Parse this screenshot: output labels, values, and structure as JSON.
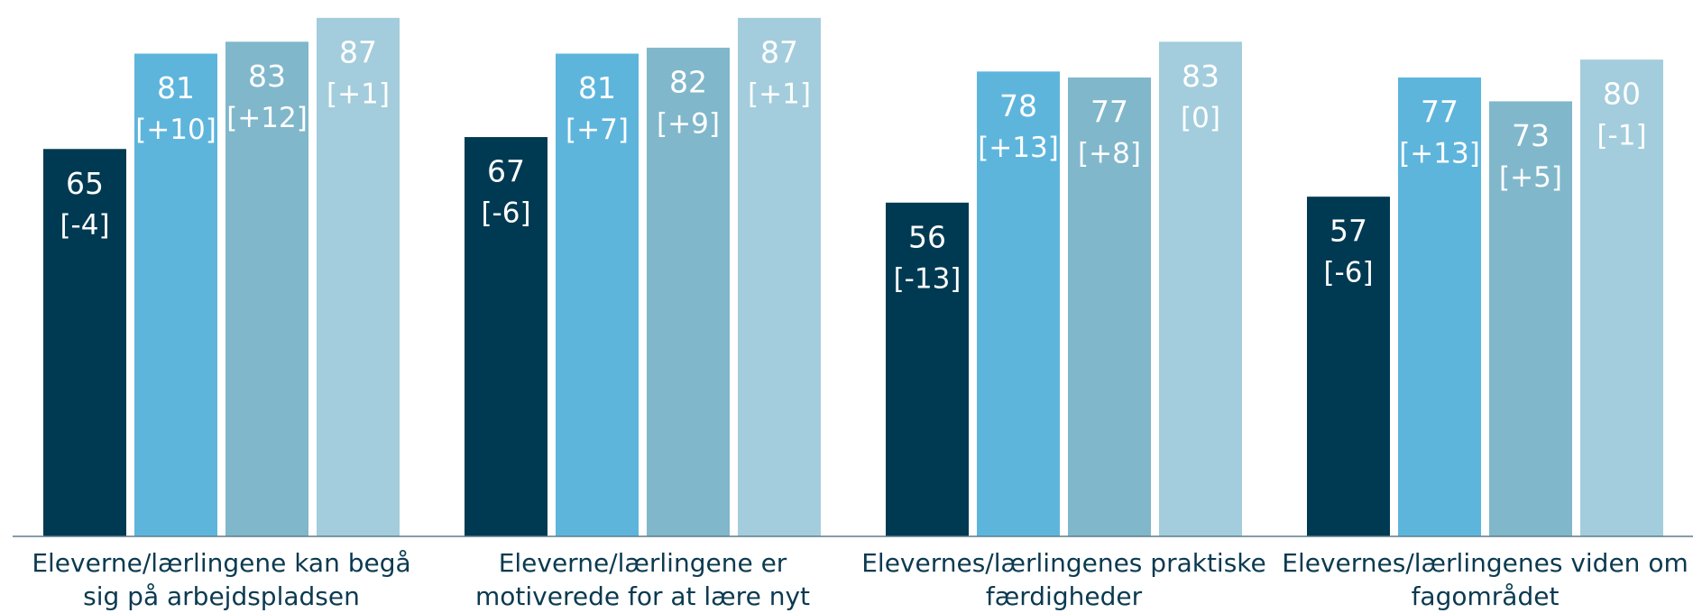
{
  "chart_data": {
    "type": "bar",
    "categories": [
      "Eleverne/lærlingene kan begå\nsig på arbejdspladsen",
      "Eleverne/lærlingene er\nmotiverede for at lære nyt",
      "Elevernes/lærlingenes praktiske\nfærdigheder",
      "Elevernes/lærlingenes viden om\nfagområdet"
    ],
    "series": [
      {
        "color": "#003a52",
        "values": [
          65,
          67,
          56,
          57
        ],
        "change_labels": [
          "[-4]",
          "[-6]",
          "[-13]",
          "[-6]"
        ]
      },
      {
        "color": "#5eb5dc",
        "values": [
          81,
          81,
          78,
          77
        ],
        "change_labels": [
          "[+10]",
          "[+7]",
          "[+13]",
          "[+13]"
        ]
      },
      {
        "color": "#80b7cb",
        "values": [
          83,
          82,
          77,
          73
        ],
        "change_labels": [
          "[+12]",
          "[+9]",
          "[+8]",
          "[+5]"
        ]
      },
      {
        "color": "#a3cddc",
        "values": [
          87,
          87,
          83,
          80
        ],
        "change_labels": [
          "[+1]",
          "[+1]",
          "[0]",
          "[-1]"
        ]
      }
    ],
    "ylim": [
      0,
      90
    ]
  }
}
